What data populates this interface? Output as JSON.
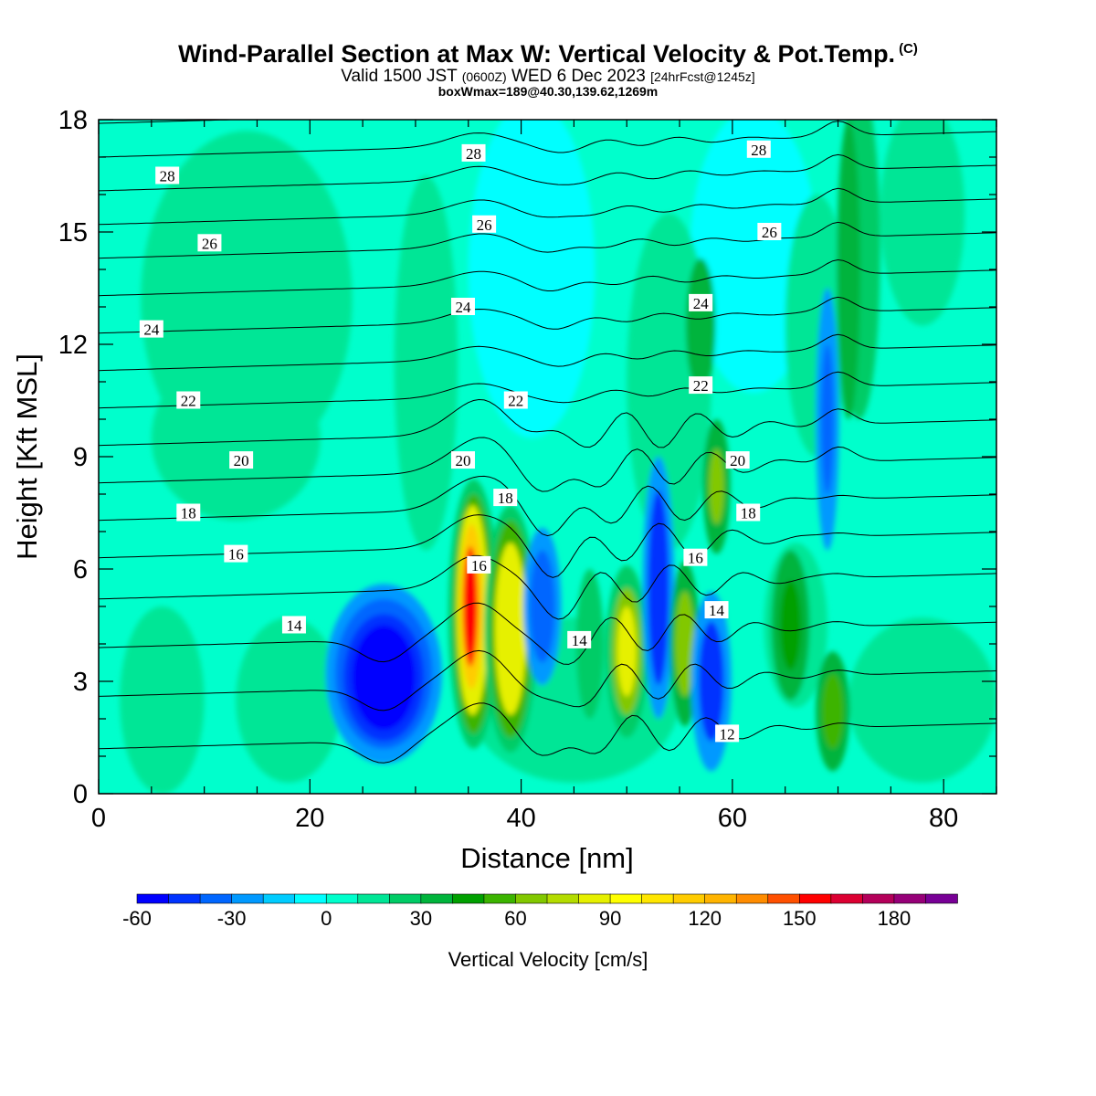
{
  "header": {
    "title": "Wind-Parallel Section at Max W: Vertical Velocity & Pot.Temp.",
    "copyright": "(C)",
    "valid_prefix": "Valid 1500 JST",
    "valid_utc": "(0600Z)",
    "valid_date": "WED 6 Dec 2023",
    "forecast": "[24hrFcst@1245z]",
    "boxinfo": "boxWmax=189@40.30,139.62,1269m"
  },
  "chart_data": {
    "type": "contour",
    "title": "Wind-Parallel Section at Max W: Vertical Velocity & Pot.Temp.",
    "xlabel": "Distance [nm]",
    "ylabel": "Height [Kft MSL]",
    "xlim": [
      0,
      85
    ],
    "ylim": [
      0,
      18
    ],
    "x_ticks": [
      0,
      20,
      40,
      60,
      80
    ],
    "y_ticks": [
      0,
      3,
      6,
      9,
      12,
      15,
      18
    ],
    "x_tick_labels": [
      "0",
      "20",
      "40",
      "60",
      "80"
    ],
    "y_tick_labels": [
      "0",
      "3",
      "6",
      "9",
      "12",
      "15",
      "18"
    ],
    "shaded_field": {
      "name": "Vertical Velocity [cm/s]",
      "levels": [
        -60,
        -50,
        -40,
        -30,
        -20,
        -10,
        0,
        10,
        20,
        30,
        40,
        50,
        60,
        70,
        80,
        90,
        100,
        110,
        120,
        130,
        140,
        150,
        160,
        170,
        180,
        190,
        200
      ],
      "colors": [
        "#0000ff",
        "#0033ff",
        "#0066ff",
        "#0099ff",
        "#00ccff",
        "#00ffff",
        "#00ffcc",
        "#00e696",
        "#00cc66",
        "#00b43c",
        "#00a000",
        "#3cb400",
        "#82c800",
        "#b4dc00",
        "#e6f000",
        "#ffff00",
        "#ffe600",
        "#ffcc00",
        "#ffb400",
        "#ff8c00",
        "#ff5000",
        "#ff0000",
        "#dc0032",
        "#b4005a",
        "#960078",
        "#780096"
      ],
      "colorbar_tick_values": [
        -60,
        -30,
        0,
        30,
        60,
        90,
        120,
        150,
        180
      ],
      "colorbar_tick_labels": [
        "-60",
        "-30",
        "0",
        "30",
        "60",
        "90",
        "120",
        "150",
        "180"
      ],
      "features": [
        {
          "x": 27,
          "y": 3.2,
          "w": -60
        },
        {
          "x": 35.5,
          "y": 5,
          "w": 150
        },
        {
          "x": 39,
          "y": 4.5,
          "w": 80
        },
        {
          "x": 42,
          "y": 5,
          "w": -40
        },
        {
          "x": 50,
          "y": 4,
          "w": 60
        },
        {
          "x": 53,
          "y": 5.5,
          "w": -50
        },
        {
          "x": 58,
          "y": 3,
          "w": -40
        },
        {
          "x": 69.5,
          "y": 2.2,
          "w": 50
        },
        {
          "x": 69,
          "y": 10,
          "w": -30
        }
      ]
    },
    "contour_field": {
      "name": "Potential Temperature",
      "labels": [
        {
          "text": "28",
          "x": 6.5,
          "y": 16.5
        },
        {
          "text": "28",
          "x": 35.5,
          "y": 17.1
        },
        {
          "text": "28",
          "x": 62.5,
          "y": 17.2
        },
        {
          "text": "26",
          "x": 10.5,
          "y": 14.7
        },
        {
          "text": "26",
          "x": 36.5,
          "y": 15.2
        },
        {
          "text": "26",
          "x": 63.5,
          "y": 15
        },
        {
          "text": "24",
          "x": 5,
          "y": 12.4
        },
        {
          "text": "24",
          "x": 34.5,
          "y": 13
        },
        {
          "text": "24",
          "x": 57,
          "y": 13.1
        },
        {
          "text": "22",
          "x": 8.5,
          "y": 10.5
        },
        {
          "text": "22",
          "x": 39.5,
          "y": 10.5
        },
        {
          "text": "22",
          "x": 57,
          "y": 10.9
        },
        {
          "text": "20",
          "x": 13.5,
          "y": 8.9
        },
        {
          "text": "20",
          "x": 34.5,
          "y": 8.9
        },
        {
          "text": "20",
          "x": 60.5,
          "y": 8.9
        },
        {
          "text": "18",
          "x": 8.5,
          "y": 7.5
        },
        {
          "text": "18",
          "x": 38.5,
          "y": 7.9
        },
        {
          "text": "18",
          "x": 61.5,
          "y": 7.5
        },
        {
          "text": "16",
          "x": 13,
          "y": 6.4
        },
        {
          "text": "16",
          "x": 36,
          "y": 6.1
        },
        {
          "text": "16",
          "x": 56.5,
          "y": 6.3
        },
        {
          "text": "14",
          "x": 18.5,
          "y": 4.5
        },
        {
          "text": "14",
          "x": 45.5,
          "y": 4.1
        },
        {
          "text": "14",
          "x": 58.5,
          "y": 4.9
        },
        {
          "text": "12",
          "x": 59.5,
          "y": 1.6
        }
      ]
    },
    "colorbar_label": "Vertical Velocity [cm/s]"
  }
}
